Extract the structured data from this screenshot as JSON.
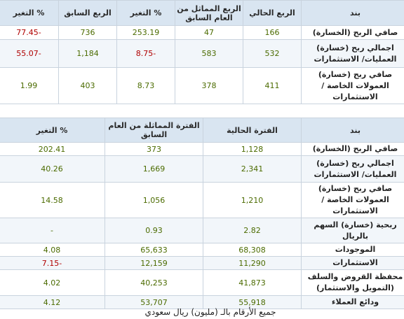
{
  "quarterly": {
    "headers": {
      "item": "بند",
      "current": "الربع الحالي",
      "same_last_year": "الربع المماثل من العام السابق",
      "change_yoy": "% التغير",
      "previous": "الربع السابق",
      "change_qoq": "% التغير"
    },
    "rows": [
      {
        "item": "صافي الربح (الخسارة)",
        "current": "166",
        "same": "47",
        "chg1": "253.19",
        "prev": "736",
        "chg2": "-77.45"
      },
      {
        "item": "اجمالي ربح (خسارة) العمليات/ الاستثمارات",
        "current": "532",
        "same": "583",
        "chg1": "-8.75",
        "prev": "1,184",
        "chg2": "-55.07"
      },
      {
        "item": "صافي ربح (خسارة) العمولات الخاصة / الاستثمارات",
        "current": "411",
        "same": "378",
        "chg1": "8.73",
        "prev": "403",
        "chg2": "1.99"
      }
    ]
  },
  "period": {
    "headers": {
      "item": "بند",
      "current": "الفترة الحالية",
      "same_last_year": "الفترة المماثلة من العام السابق",
      "change": "% التغير"
    },
    "rows": [
      {
        "item": "صافي الربح (الخسارة)",
        "current": "1,128",
        "same": "373",
        "chg": "202.41"
      },
      {
        "item": "اجمالي ربح (خسارة) العمليات/ الاستثمارات",
        "current": "2,341",
        "same": "1,669",
        "chg": "40.26"
      },
      {
        "item": "صافي ربح (خسارة) العمولات الخاصة / الاستثمارات",
        "current": "1,210",
        "same": "1,056",
        "chg": "14.58"
      },
      {
        "item": "ربحية (خسارة) السهم بالريال",
        "current": "2.82",
        "same": "0.93",
        "chg": "-"
      },
      {
        "item": "الموجودات",
        "current": "68,308",
        "same": "65,633",
        "chg": "4.08"
      },
      {
        "item": "الاستثمارات",
        "current": "11,290",
        "same": "12,159",
        "chg": "-7.15"
      },
      {
        "item": "محفظة القروض والسلف (التمويل والاستثمار)",
        "current": "41,873",
        "same": "40,253",
        "chg": "4.02"
      },
      {
        "item": "ودائع العملاء",
        "current": "55,918",
        "same": "53,707",
        "chg": "4.12"
      }
    ]
  },
  "footnote": "جميع الأرقام بالـ (مليون) ريال سعودي",
  "colors": {
    "header_bg": "#d9e5f1",
    "negative": "#b00000",
    "positive": "#4b6b00"
  }
}
